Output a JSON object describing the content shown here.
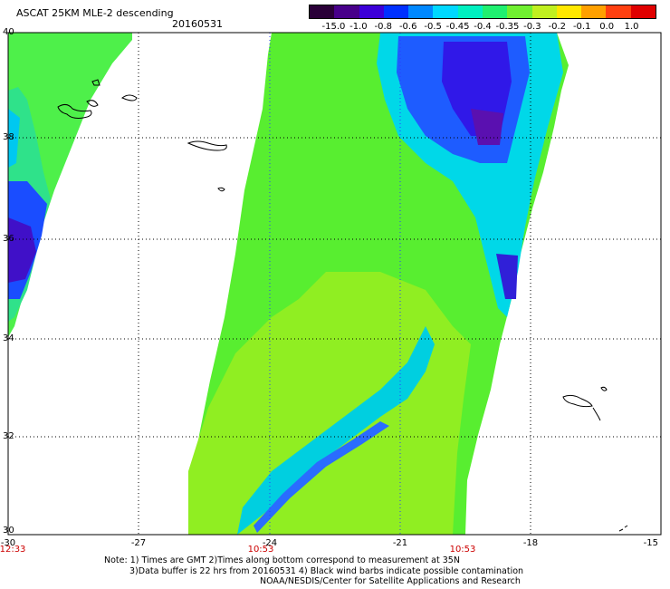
{
  "header": {
    "title": "ASCAT 25KM MLE-2 descending",
    "date": "20160531"
  },
  "colorbar": {
    "labels": [
      "-15.0",
      "-1.0",
      "-0.8",
      "-0.6",
      "-0.5",
      "-0.45",
      "-0.4",
      "-0.35",
      "-0.3",
      "-0.2",
      "-0.1",
      "0.0",
      "1.0"
    ],
    "colors": [
      "#2a0038",
      "#48008a",
      "#3c00d8",
      "#0030ff",
      "#0088ff",
      "#00d8ff",
      "#00f0c0",
      "#20f070",
      "#70f030",
      "#c0f020",
      "#ffe800",
      "#ffa000",
      "#ff4010",
      "#e00000"
    ]
  },
  "map": {
    "lon_ticks": [
      "-30",
      "-27",
      "-24",
      "-21",
      "-18",
      "-15"
    ],
    "lat_ticks": [
      "40",
      "38",
      "36",
      "34",
      "32",
      "30"
    ],
    "time_labels": [
      "12:33",
      "10:53",
      "10:53"
    ]
  },
  "footer": {
    "note_line1": "Note: 1) Times are GMT 2)Times along bottom correspond to measurement at 35N",
    "note_line2": "3)Data buffer is 22 hrs from 20160531 4) Black wind barbs indicate possible contamination",
    "note_line3": "NOAA/NESDIS/Center for Satellite Applications and Research"
  }
}
